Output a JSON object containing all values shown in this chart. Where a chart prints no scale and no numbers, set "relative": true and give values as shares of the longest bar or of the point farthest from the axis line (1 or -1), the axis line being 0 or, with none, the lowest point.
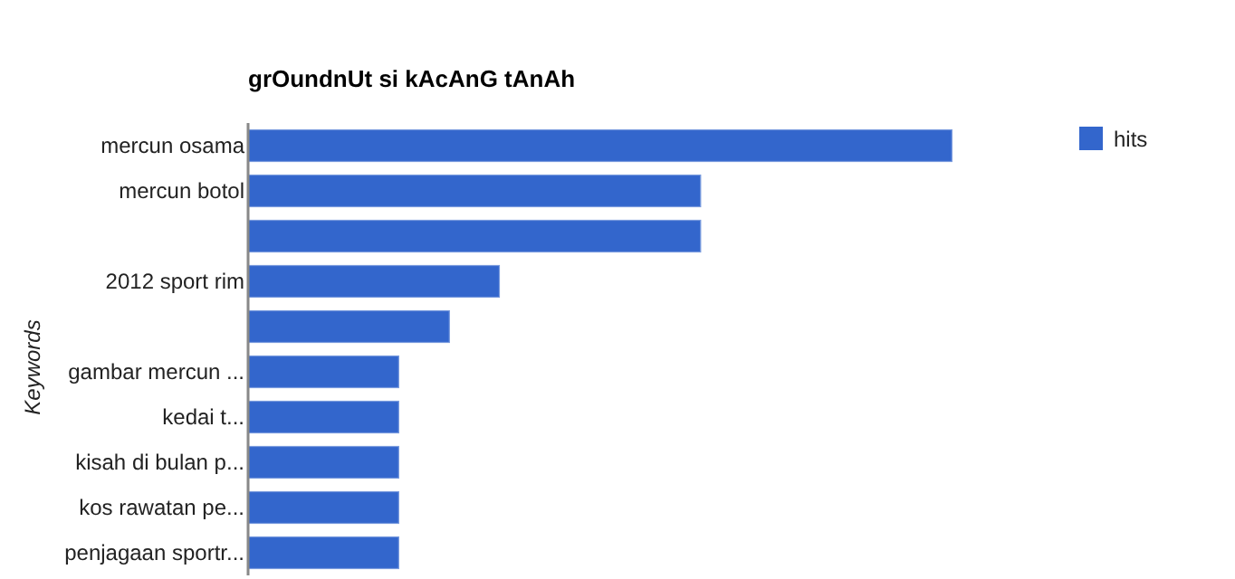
{
  "chart_data": {
    "type": "bar",
    "orientation": "horizontal",
    "relative": true,
    "title": "grOundnUt si kAcAnG tAnAh",
    "ylabel": "Keywords",
    "categories": [
      "mercun osama",
      "mercun botol",
      null,
      "2012 sport rim",
      null,
      "gambar mercun ...",
      "kedai t...",
      "kisah di bulan p...",
      "kos rawatan pe...",
      "penjagaan sportr..."
    ],
    "series": [
      {
        "name": "hits",
        "color": "#3366cc",
        "values": [
          1,
          0.643,
          0.643,
          0.357,
          0.286,
          0.214,
          0.214,
          0.214,
          0.214,
          0.214
        ]
      }
    ],
    "legend": "top right"
  }
}
